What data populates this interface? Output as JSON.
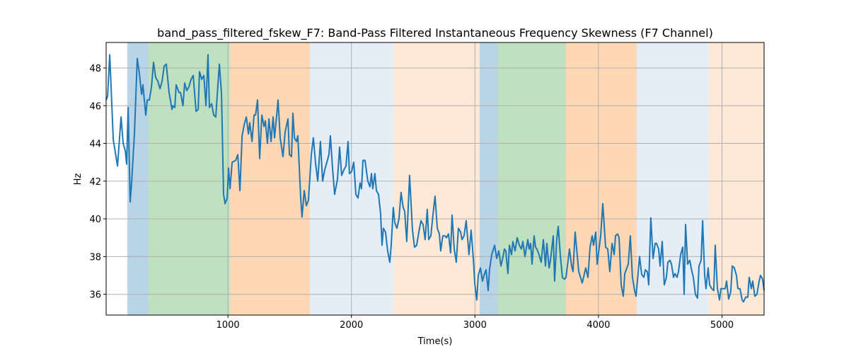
{
  "chart_data": {
    "type": "line",
    "title": "band_pass_filtered_fskew_F7: Band-Pass Filtered Instantaneous Frequency Skewness (F7 Channel)",
    "xlabel": "Time(s)",
    "ylabel": "Hz",
    "xlim": [
      14,
      5341
    ],
    "ylim": [
      34.9,
      49.35
    ],
    "xticks": [
      1000,
      2000,
      3000,
      4000,
      5000
    ],
    "yticks": [
      36,
      38,
      40,
      42,
      44,
      46,
      48
    ],
    "grid": true,
    "line_color": "#1f77b4",
    "spans": [
      {
        "start": 186,
        "end": 358,
        "color": "#b9d3e7"
      },
      {
        "start": 358,
        "end": 1017,
        "color": "#bfe1bf"
      },
      {
        "start": 1017,
        "end": 1664,
        "color": "#fed7b4"
      },
      {
        "start": 1664,
        "end": 2339,
        "color": "#e5edf7"
      },
      {
        "start": 2339,
        "end": 3038,
        "color": "#fee9d6"
      },
      {
        "start": 3038,
        "end": 3187,
        "color": "#b9d3e7"
      },
      {
        "start": 3187,
        "end": 3737,
        "color": "#bfe1bf"
      },
      {
        "start": 3737,
        "end": 4310,
        "color": "#fed7b4"
      },
      {
        "start": 4310,
        "end": 4893,
        "color": "#e5edf7"
      },
      {
        "start": 4893,
        "end": 5341,
        "color": "#fee9d6"
      }
    ],
    "series": [
      {
        "name": "band_pass_filtered_fskew_F7",
        "x": [
          14,
          26,
          43,
          72,
          106,
          135,
          152,
          169,
          180,
          192,
          209,
          220,
          243,
          266,
          283,
          301,
          312,
          335,
          347,
          364,
          381,
          398,
          415,
          433,
          450,
          467,
          484,
          501,
          524,
          547,
          555,
          570,
          581,
          604,
          616,
          636,
          650,
          667,
          684,
          702,
          719,
          742,
          759,
          770,
          788,
          805,
          822,
          839,
          850,
          868,
          885,
          902,
          919,
          931,
          948,
          965,
          977,
          994,
          1005,
          1017,
          1034,
          1063,
          1080,
          1097,
          1115,
          1132,
          1149,
          1166,
          1177,
          1195,
          1212,
          1223,
          1240,
          1257,
          1275,
          1292,
          1303,
          1320,
          1332,
          1349,
          1366,
          1377,
          1395,
          1406,
          1423,
          1446,
          1463,
          1486,
          1498,
          1515,
          1526,
          1538,
          1555,
          1566,
          1589,
          1600,
          1618,
          1635,
          1652,
          1675,
          1692,
          1709,
          1727,
          1749,
          1767,
          1784,
          1801,
          1818,
          1830,
          1847,
          1864,
          1887,
          1904,
          1921,
          1939,
          1956,
          1973,
          1984,
          2001,
          2019,
          2036,
          2053,
          2070,
          2082,
          2093,
          2110,
          2133,
          2150,
          2162,
          2173,
          2190,
          2202,
          2219,
          2236,
          2248,
          2259,
          2276,
          2293,
          2311,
          2322,
          2339,
          2351,
          2368,
          2385,
          2402,
          2419,
          2431,
          2448,
          2471,
          2494,
          2511,
          2528,
          2546,
          2563,
          2580,
          2597,
          2614,
          2626,
          2643,
          2660,
          2677,
          2695,
          2712,
          2723,
          2740,
          2757,
          2769,
          2786,
          2803,
          2815,
          2832,
          2849,
          2866,
          2884,
          2895,
          2912,
          2929,
          2952,
          2969,
          2987,
          2998,
          3015,
          3027,
          3044,
          3061,
          3073,
          3090,
          3107,
          3118,
          3136,
          3159,
          3176,
          3193,
          3210,
          3221,
          3239,
          3250,
          3267,
          3279,
          3296,
          3307,
          3325,
          3342,
          3359,
          3376,
          3388,
          3405,
          3428,
          3439,
          3451,
          3462,
          3479,
          3491,
          3502,
          3519,
          3536,
          3554,
          3571,
          3582,
          3600,
          3611,
          3634,
          3645,
          3662,
          3674,
          3691,
          3708,
          3725,
          3737,
          3765,
          3783,
          3794,
          3811,
          3840,
          3869,
          3897,
          3915,
          3932,
          3949,
          3960,
          3978,
          3989,
          4018,
          4035,
          4058,
          4075,
          4092,
          4110,
          4127,
          4138,
          4155,
          4167,
          4184,
          4201,
          4213,
          4241,
          4258,
          4275,
          4293,
          4304,
          4333,
          4350,
          4367,
          4379,
          4396,
          4407,
          4424,
          4442,
          4459,
          4470,
          4487,
          4499,
          4516,
          4533,
          4550,
          4562,
          4579,
          4591,
          4608,
          4619,
          4636,
          4648,
          4665,
          4682,
          4694,
          4705,
          4722,
          4739,
          4757,
          4768,
          4785,
          4802,
          4814,
          4831,
          4843,
          4860,
          4871,
          4888,
          4900,
          4917,
          4934,
          4945,
          4963,
          4980,
          4991,
          5008,
          5026,
          5037,
          5054,
          5071,
          5083,
          5100,
          5117,
          5129,
          5146,
          5163,
          5174,
          5192,
          5209,
          5220,
          5238,
          5249,
          5266,
          5283,
          5301,
          5312,
          5329,
          5341
        ],
        "y": [
          46.3,
          46.5,
          48.7,
          44.2,
          42.8,
          45.4,
          44.0,
          43.6,
          42.9,
          45.9,
          40.9,
          41.9,
          44.5,
          48.5,
          47.7,
          46.6,
          47.1,
          45.5,
          46.3,
          46.3,
          47.0,
          48.3,
          47.5,
          47.3,
          46.9,
          47.3,
          48.1,
          48.2,
          46.7,
          45.8,
          46.0,
          45.9,
          47.1,
          46.7,
          46.7,
          46.0,
          47.2,
          46.8,
          47.0,
          47.4,
          47.6,
          45.7,
          45.8,
          47.8,
          47.4,
          47.6,
          46.0,
          48.7,
          45.9,
          46.1,
          45.5,
          45.4,
          47.1,
          48.2,
          46.6,
          41.3,
          40.8,
          41.1,
          42.7,
          41.6,
          43.0,
          43.1,
          43.4,
          41.5,
          44.4,
          45.0,
          45.4,
          44.5,
          45.1,
          44.1,
          45.5,
          45.5,
          46.3,
          43.2,
          45.5,
          44.9,
          45.2,
          44.0,
          45.3,
          44.1,
          45.4,
          44.3,
          45.5,
          46.3,
          44.3,
          43.3,
          44.6,
          45.3,
          43.4,
          43.3,
          45.6,
          44.3,
          44.1,
          44.4,
          41.1,
          40.1,
          41.5,
          40.7,
          41.0,
          43.4,
          44.3,
          43.0,
          42.0,
          44.1,
          42.0,
          42.6,
          43.0,
          43.4,
          44.4,
          42.7,
          41.3,
          42.1,
          43.8,
          42.3,
          42.6,
          42.8,
          44.1,
          42.4,
          42.5,
          43.0,
          41.3,
          41.1,
          41.9,
          41.6,
          43.1,
          43.1,
          42.0,
          41.7,
          42.4,
          41.6,
          42.4,
          41.5,
          41.3,
          40.3,
          38.6,
          39.5,
          39.3,
          38.3,
          37.7,
          38.6,
          40.6,
          39.8,
          39.5,
          40.0,
          41.4,
          40.6,
          40.4,
          38.8,
          42.3,
          39.4,
          38.5,
          38.6,
          39.3,
          39.9,
          39.7,
          38.9,
          40.5,
          38.9,
          39.1,
          40.2,
          41.2,
          39.5,
          39.2,
          38.3,
          39.1,
          39.1,
          39.0,
          39.2,
          38.2,
          40.2,
          38.4,
          37.7,
          39.5,
          39.3,
          38.9,
          39.1,
          39.9,
          38.1,
          39.4,
          37.9,
          36.6,
          35.7,
          37.0,
          37.4,
          36.7,
          37.0,
          37.3,
          36.2,
          37.3,
          38.1,
          38.6,
          37.9,
          38.3,
          37.5,
          37.8,
          38.4,
          38.3,
          37.1,
          38.6,
          38.1,
          38.8,
          38.3,
          39.0,
          38.6,
          38.4,
          38.8,
          38.0,
          38.9,
          38.4,
          38.7,
          37.6,
          39.1,
          38.5,
          38.4,
          38.1,
          37.7,
          38.9,
          37.5,
          38.7,
          37.4,
          37.8,
          39.1,
          36.7,
          38.9,
          39.6,
          38.1,
          36.9,
          36.8,
          36.9,
          38.4,
          37.5,
          37.2,
          39.3,
          37.2,
          36.6,
          37.4,
          36.9,
          38.5,
          39.1,
          38.6,
          39.3,
          37.6,
          39.1,
          40.8,
          38.5,
          38.4,
          37.2,
          38.7,
          38.1,
          39.1,
          39.2,
          39.0,
          36.5,
          35.9,
          37.1,
          37.6,
          39.1,
          36.9,
          36.2,
          35.9,
          38.0,
          37.05,
          36.9,
          37.3,
          37.2,
          36.5,
          40.05,
          37.9,
          38.7,
          38.7,
          38.4,
          37.5,
          38.8,
          36.5,
          36.9,
          37.7,
          37.8,
          37.6,
          36.9,
          37.1,
          36.9,
          37.2,
          38.1,
          38.5,
          36.0,
          39.7,
          37.6,
          37.8,
          37.2,
          36.9,
          36.0,
          35.8,
          37.5,
          37.8,
          39.9,
          37.0,
          36.3,
          37.4,
          36.5,
          36.3,
          36.2,
          38.6,
          36.3,
          35.7,
          36.3,
          36.3,
          36.3,
          36.7,
          35.75,
          36.15,
          37.5,
          37.4,
          37.0,
          36.3,
          36.3,
          35.7,
          35.6,
          35.85,
          35.85,
          36.9,
          36.3,
          36.7,
          35.9,
          36.0,
          36.7,
          37.0,
          36.8,
          36.2
        ]
      }
    ]
  }
}
